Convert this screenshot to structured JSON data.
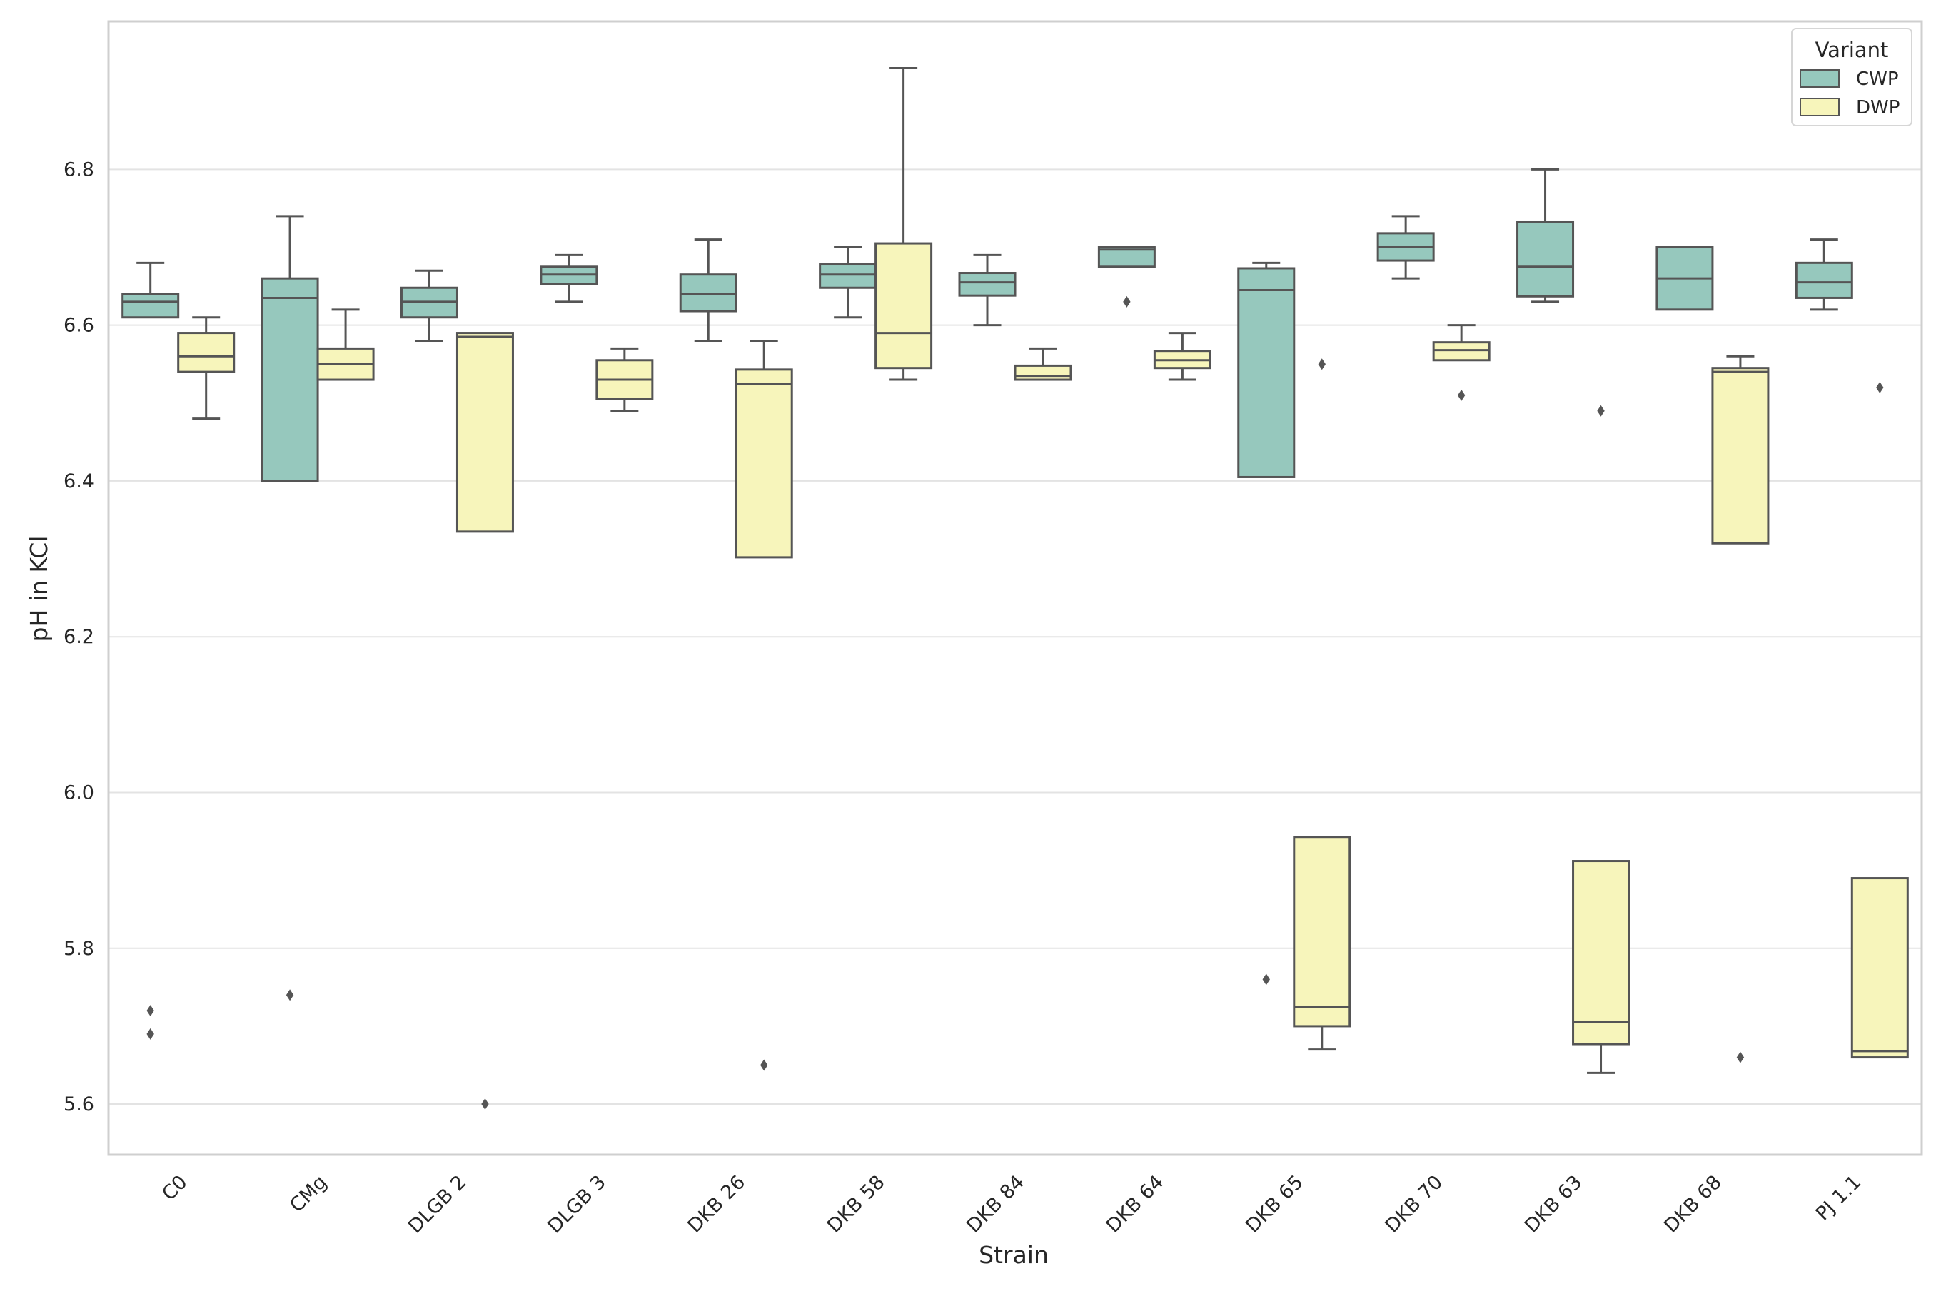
{
  "chart_data": {
    "type": "box",
    "title": "",
    "xlabel": "Strain",
    "ylabel": "pH in KCl",
    "ylim": [
      5.535,
      6.99
    ],
    "yticks": [
      5.6,
      5.8,
      6.0,
      6.2,
      6.4,
      6.6,
      6.8
    ],
    "ytick_labels": [
      "5.6",
      "5.8",
      "6.0",
      "6.2",
      "6.4",
      "6.6",
      "6.8"
    ],
    "grid": true,
    "legend": {
      "title": "Variant",
      "position": "top-right"
    },
    "categories": [
      "C0",
      "CMg",
      "DLGB 2",
      "DLGB 3",
      "DKB 26",
      "DKB 58",
      "DKB 84",
      "DKB 64",
      "DKB 65",
      "DKB 70",
      "DKB 63",
      "DKB 68",
      "PJ 1.1"
    ],
    "series": [
      {
        "name": "CWP",
        "color": "#96c8bd",
        "boxes": [
          {
            "whislo": 6.61,
            "q1": 6.61,
            "med": 6.63,
            "q3": 6.64,
            "whishi": 6.68,
            "fliers": [
              5.72,
              5.69
            ]
          },
          {
            "whislo": 6.4,
            "q1": 6.4,
            "med": 6.635,
            "q3": 6.66,
            "whishi": 6.74,
            "fliers": [
              5.74
            ]
          },
          {
            "whislo": 6.58,
            "q1": 6.61,
            "med": 6.63,
            "q3": 6.648,
            "whishi": 6.67,
            "fliers": []
          },
          {
            "whislo": 6.63,
            "q1": 6.653,
            "med": 6.665,
            "q3": 6.675,
            "whishi": 6.69,
            "fliers": []
          },
          {
            "whislo": 6.58,
            "q1": 6.618,
            "med": 6.64,
            "q3": 6.665,
            "whishi": 6.71,
            "fliers": []
          },
          {
            "whislo": 6.61,
            "q1": 6.648,
            "med": 6.665,
            "q3": 6.678,
            "whishi": 6.7,
            "fliers": []
          },
          {
            "whislo": 6.6,
            "q1": 6.638,
            "med": 6.655,
            "q3": 6.667,
            "whishi": 6.69,
            "fliers": []
          },
          {
            "whislo": 6.675,
            "q1": 6.675,
            "med": 6.697,
            "q3": 6.7,
            "whishi": 6.7,
            "fliers": [
              6.63
            ]
          },
          {
            "whislo": 6.405,
            "q1": 6.405,
            "med": 6.645,
            "q3": 6.673,
            "whishi": 6.68,
            "fliers": [
              5.76
            ]
          },
          {
            "whislo": 6.66,
            "q1": 6.683,
            "med": 6.7,
            "q3": 6.718,
            "whishi": 6.74,
            "fliers": []
          },
          {
            "whislo": 6.63,
            "q1": 6.637,
            "med": 6.675,
            "q3": 6.733,
            "whishi": 6.8,
            "fliers": []
          },
          {
            "whislo": 6.62,
            "q1": 6.62,
            "med": 6.66,
            "q3": 6.7,
            "whishi": 6.7,
            "fliers": []
          },
          {
            "whislo": 6.62,
            "q1": 6.635,
            "med": 6.655,
            "q3": 6.68,
            "whishi": 6.71,
            "fliers": []
          }
        ]
      },
      {
        "name": "DWP",
        "color": "#f7f5bb",
        "boxes": [
          {
            "whislo": 6.48,
            "q1": 6.54,
            "med": 6.56,
            "q3": 6.59,
            "whishi": 6.61,
            "fliers": []
          },
          {
            "whislo": 6.53,
            "q1": 6.53,
            "med": 6.55,
            "q3": 6.57,
            "whishi": 6.62,
            "fliers": []
          },
          {
            "whislo": 6.335,
            "q1": 6.335,
            "med": 6.585,
            "q3": 6.59,
            "whishi": 6.59,
            "fliers": [
              5.6
            ]
          },
          {
            "whislo": 6.49,
            "q1": 6.505,
            "med": 6.53,
            "q3": 6.555,
            "whishi": 6.57,
            "fliers": []
          },
          {
            "whislo": 6.302,
            "q1": 6.302,
            "med": 6.525,
            "q3": 6.543,
            "whishi": 6.58,
            "fliers": [
              5.65
            ]
          },
          {
            "whislo": 6.53,
            "q1": 6.545,
            "med": 6.59,
            "q3": 6.705,
            "whishi": 6.93,
            "fliers": []
          },
          {
            "whislo": 6.53,
            "q1": 6.53,
            "med": 6.535,
            "q3": 6.548,
            "whishi": 6.57,
            "fliers": []
          },
          {
            "whislo": 6.53,
            "q1": 6.545,
            "med": 6.555,
            "q3": 6.567,
            "whishi": 6.59,
            "fliers": []
          },
          {
            "whislo": 5.67,
            "q1": 5.7,
            "med": 5.725,
            "q3": 5.943,
            "whishi": 5.943,
            "fliers": [
              6.55
            ]
          },
          {
            "whislo": 6.555,
            "q1": 6.555,
            "med": 6.568,
            "q3": 6.578,
            "whishi": 6.6,
            "fliers": [
              6.51
            ]
          },
          {
            "whislo": 5.64,
            "q1": 5.677,
            "med": 5.705,
            "q3": 5.912,
            "whishi": 5.912,
            "fliers": [
              6.49
            ]
          },
          {
            "whislo": 6.32,
            "q1": 6.32,
            "med": 6.54,
            "q3": 6.545,
            "whishi": 6.56,
            "fliers": [
              5.66
            ]
          },
          {
            "whislo": 5.66,
            "q1": 5.66,
            "med": 5.668,
            "q3": 5.89,
            "whishi": 5.89,
            "fliers": [
              6.52
            ]
          }
        ]
      }
    ]
  }
}
